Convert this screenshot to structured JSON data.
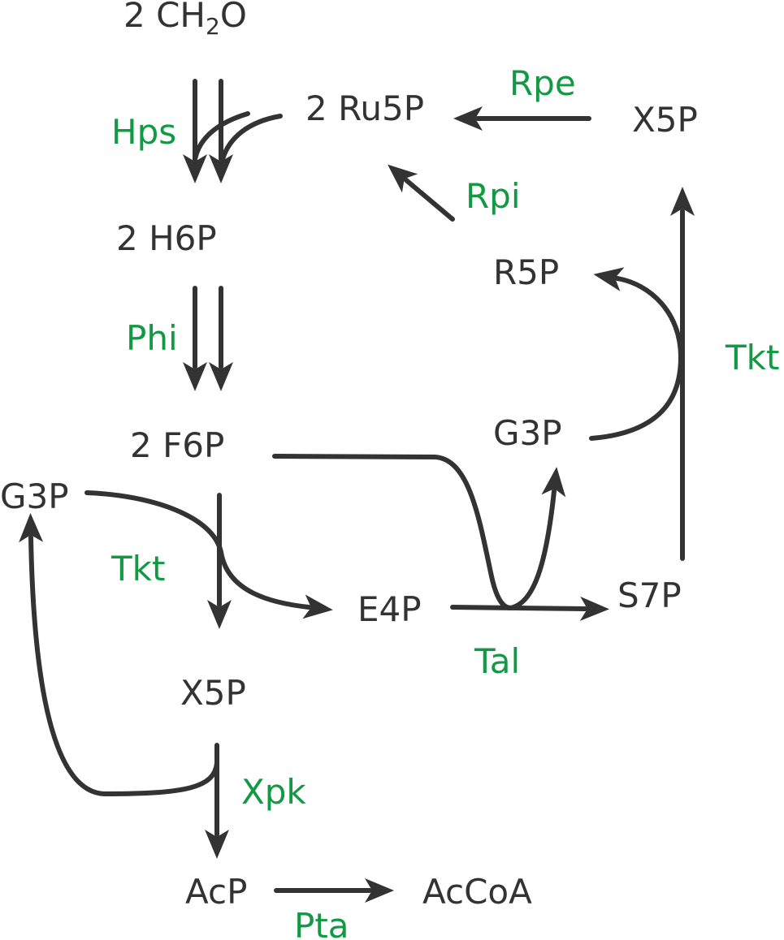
{
  "metabolites": {
    "ch2o": {
      "prefix": "2 CH",
      "sub": "2",
      "suffix": "O"
    },
    "ru5p": "2 Ru5P",
    "x5p_top": "X5P",
    "h6p": "2 H6P",
    "r5p": "R5P",
    "f6p": "2 F6P",
    "g3p_right": "G3P",
    "g3p_left": "G3P",
    "e4p": "E4P",
    "s7p": "S7P",
    "x5p_mid": "X5P",
    "acp": "AcP",
    "accoa": "AcCoA"
  },
  "enzymes": {
    "hps": "Hps",
    "rpe": "Rpe",
    "rpi": "Rpi",
    "phi": "Phi",
    "tkt_right": "Tkt",
    "tkt_left": "Tkt",
    "tal": "Tal",
    "xpk": "Xpk",
    "pta": "Pta"
  },
  "colors": {
    "metabolite_text": "#333333",
    "enzyme_text": "#119944",
    "arrow": "#333333"
  }
}
